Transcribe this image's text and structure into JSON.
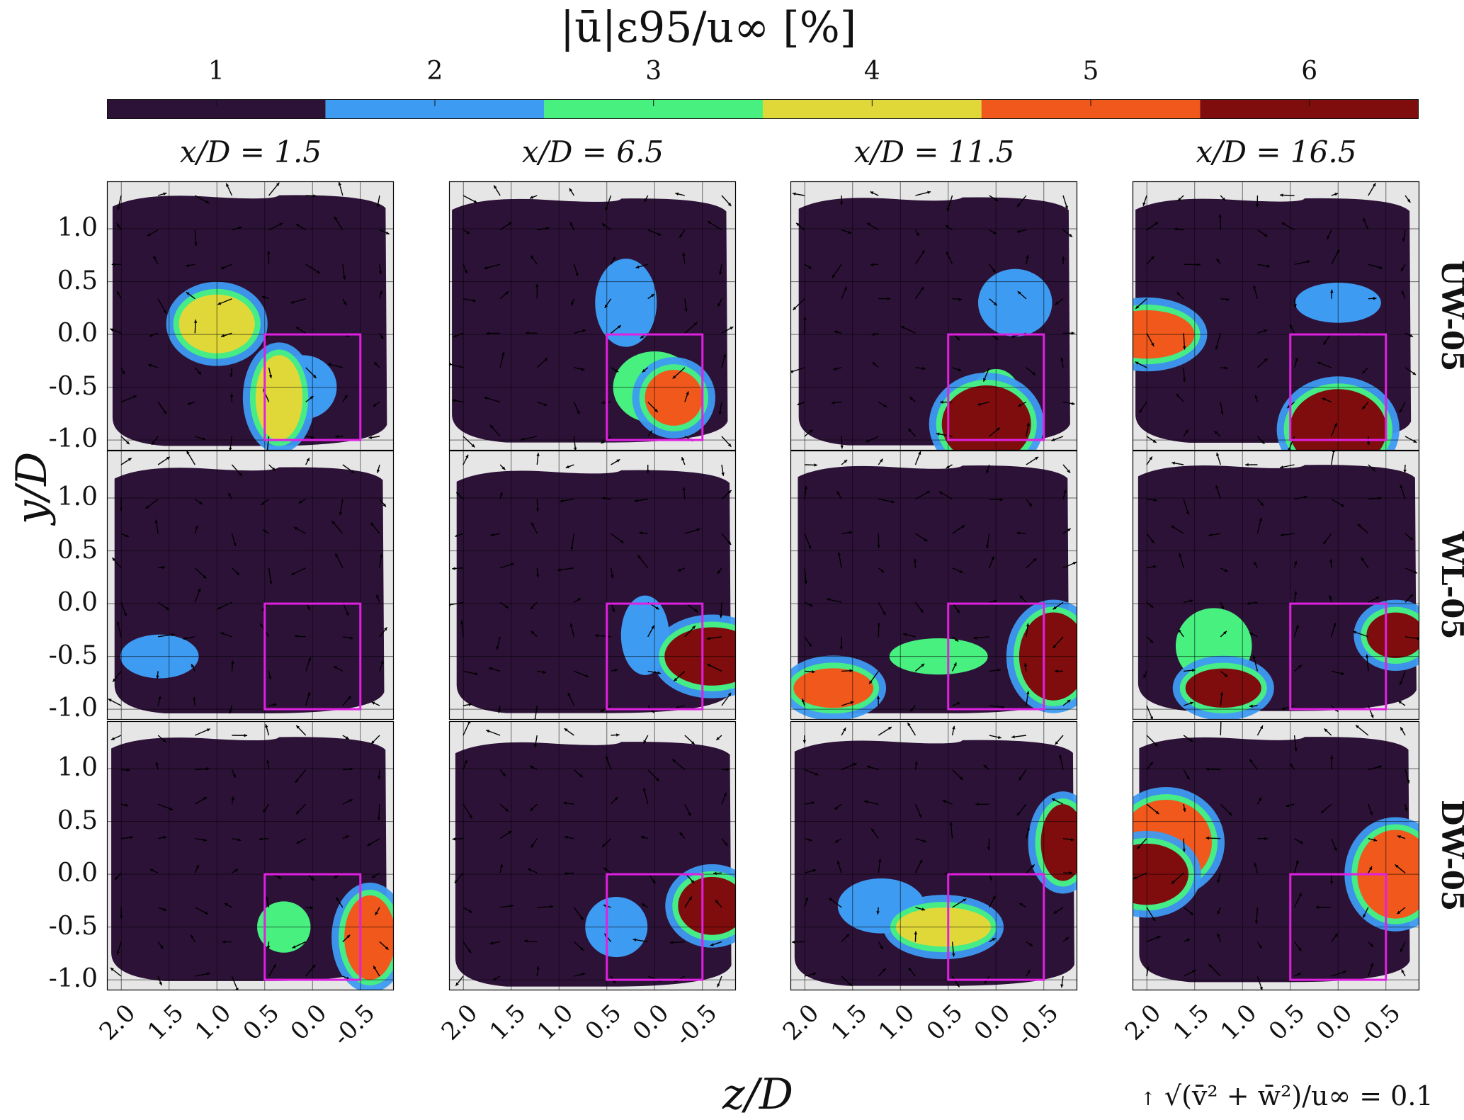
{
  "chart_data": {
    "type": "heatmap",
    "title": "|ū|ε95/u∞ [%]",
    "colorbar": {
      "ticks": [
        "1",
        "2",
        "3",
        "4",
        "5",
        "6"
      ],
      "levels": [
        {
          "value": 1,
          "color": "#2d1238"
        },
        {
          "value": 2,
          "color": "#3e9bf2"
        },
        {
          "value": 3,
          "color": "#47f07f"
        },
        {
          "value": 4,
          "color": "#e0d839"
        },
        {
          "value": 5,
          "color": "#f0581c"
        },
        {
          "value": 6,
          "color": "#800d0d"
        }
      ]
    },
    "columns": [
      "x/D = 1.5",
      "x/D = 6.5",
      "x/D = 11.5",
      "x/D = 16.5"
    ],
    "rows": [
      "UW-05",
      "WL-05",
      "DW-05"
    ],
    "xlabel": "z/D",
    "ylabel": "y/D",
    "xticks": [
      "2.0",
      "1.5",
      "1.0",
      "0.5",
      "0.0",
      "-0.5"
    ],
    "yticks": [
      "1.0",
      "0.5",
      "0.0",
      "-0.5",
      "-1.0"
    ],
    "xlim": [
      2.15,
      -0.85
    ],
    "ylim": [
      -1.1,
      1.45
    ],
    "grid": true,
    "highlight_box": {
      "z": [
        0.5,
        -0.5
      ],
      "y": [
        -1.0,
        0.0
      ],
      "color": "#e020e0"
    },
    "vector_reference": "√(v̄² + w̄²)/u∞ = 0.1",
    "panels": [
      [
        {
          "dominant": 1,
          "patches": [
            {
              "z": 0.1,
              "y": -0.5,
              "value": 2
            },
            {
              "z": 0.35,
              "y": -0.6,
              "value": 4
            },
            {
              "z": 1.0,
              "y": 0.1,
              "value": 4
            }
          ]
        },
        {
          "dominant": 1,
          "patches": [
            {
              "z": 0.3,
              "y": 0.3,
              "value": 2
            },
            {
              "z": 0.0,
              "y": -0.5,
              "value": 3
            },
            {
              "z": -0.2,
              "y": -0.6,
              "value": 5
            }
          ]
        },
        {
          "dominant": 1,
          "patches": [
            {
              "z": -0.2,
              "y": 0.3,
              "value": 2
            },
            {
              "z": 0.0,
              "y": -0.6,
              "value": 3
            },
            {
              "z": 0.1,
              "y": -0.85,
              "value": 6
            }
          ]
        },
        {
          "dominant": 1,
          "patches": [
            {
              "z": 0.0,
              "y": 0.3,
              "value": 2
            },
            {
              "z": 0.0,
              "y": -0.9,
              "value": 6
            },
            {
              "z": 2.0,
              "y": 0.0,
              "value": 5
            }
          ]
        }
      ],
      [
        {
          "dominant": 1,
          "patches": [
            {
              "z": 1.6,
              "y": -0.5,
              "value": 2
            }
          ]
        },
        {
          "dominant": 1,
          "patches": [
            {
              "z": 0.1,
              "y": -0.3,
              "value": 2
            },
            {
              "z": -0.6,
              "y": -0.5,
              "value": 6
            }
          ]
        },
        {
          "dominant": 1,
          "patches": [
            {
              "z": 0.6,
              "y": -0.5,
              "value": 3
            },
            {
              "z": -0.6,
              "y": -0.5,
              "value": 6
            },
            {
              "z": 1.7,
              "y": -0.8,
              "value": 5
            }
          ]
        },
        {
          "dominant": 1,
          "patches": [
            {
              "z": 1.3,
              "y": -0.4,
              "value": 3
            },
            {
              "z": 1.2,
              "y": -0.8,
              "value": 6
            },
            {
              "z": -0.6,
              "y": -0.3,
              "value": 6
            }
          ]
        }
      ],
      [
        {
          "dominant": 1,
          "patches": [
            {
              "z": 0.3,
              "y": -0.5,
              "value": 3
            },
            {
              "z": -0.6,
              "y": -0.6,
              "value": 5
            }
          ]
        },
        {
          "dominant": 1,
          "patches": [
            {
              "z": 0.4,
              "y": -0.5,
              "value": 2
            },
            {
              "z": -0.6,
              "y": -0.3,
              "value": 6
            }
          ]
        },
        {
          "dominant": 1,
          "patches": [
            {
              "z": 1.2,
              "y": -0.3,
              "value": 2
            },
            {
              "z": 0.55,
              "y": -0.5,
              "value": 4
            },
            {
              "z": -0.7,
              "y": 0.3,
              "value": 6
            }
          ]
        },
        {
          "dominant": 1,
          "patches": [
            {
              "z": 1.8,
              "y": 0.3,
              "value": 5
            },
            {
              "z": 2.0,
              "y": 0.0,
              "value": 6
            },
            {
              "z": -0.6,
              "y": 0.0,
              "value": 5
            }
          ]
        }
      ]
    ]
  }
}
